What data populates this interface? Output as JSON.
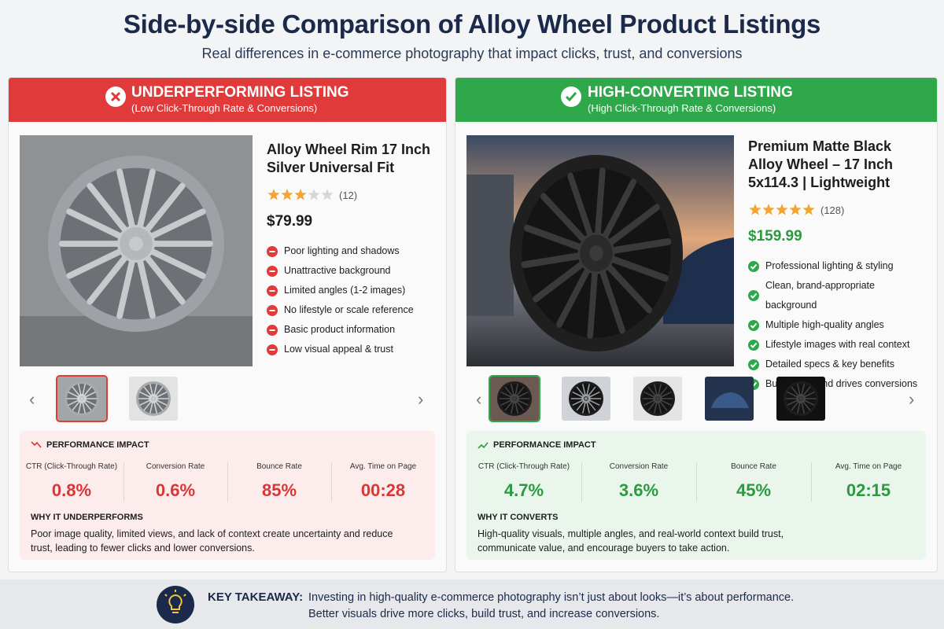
{
  "header": {
    "title": "Side-by-side Comparison of Alloy Wheel Product Listings",
    "subtitle": "Real differences in e-commerce photography that impact clicks, trust, and conversions"
  },
  "left": {
    "heading": "UNDERPERFORMING LISTING",
    "subheading": "(Low Click-Through Rate & Conversions)",
    "product_title": "Alloy Wheel Rim 17 Inch Silver Universal Fit",
    "rating": 3,
    "reviews": "(12)",
    "price": "$79.99",
    "points": [
      "Poor lighting and shadows",
      "Unattractive background",
      "Limited angles (1-2 images)",
      "No lifestyle or scale reference",
      "Basic product information",
      "Low visual appeal & trust"
    ],
    "performance_title": "PERFORMANCE IMPACT",
    "metrics": [
      {
        "label": "CTR (Click-Through Rate)",
        "value": "0.8%"
      },
      {
        "label": "Conversion Rate",
        "value": "0.6%"
      },
      {
        "label": "Bounce Rate",
        "value": "85%"
      },
      {
        "label": "Avg. Time on Page",
        "value": "00:28"
      }
    ],
    "why_title": "WHY IT UNDERPERFORMS",
    "why_text": "Poor image quality, limited views, and lack of context create uncertainty and reduce trust, leading to fewer clicks and lower conversions."
  },
  "right": {
    "heading": "HIGH-CONVERTING LISTING",
    "subheading": "(High Click-Through Rate & Conversions)",
    "product_title": "Premium Matte Black Alloy Wheel – 17 Inch 5x114.3 | Lightweight",
    "rating": 5,
    "reviews": "(128)",
    "price": "$159.99",
    "points": [
      "Professional lighting & styling",
      "Clean, brand-appropriate background",
      "Multiple high-quality angles",
      "Lifestyle images with real context",
      "Detailed specs & key benefits",
      "Builds trust and drives conversions"
    ],
    "performance_title": "PERFORMANCE IMPACT",
    "metrics": [
      {
        "label": "CTR (Click-Through Rate)",
        "value": "4.7%"
      },
      {
        "label": "Conversion Rate",
        "value": "3.6%"
      },
      {
        "label": "Bounce Rate",
        "value": "45%"
      },
      {
        "label": "Avg. Time on Page",
        "value": "02:15"
      }
    ],
    "why_title": "WHY IT CONVERTS",
    "why_text": "High-quality visuals, multiple angles, and real-world context build trust, communicate value, and encourage buyers to take action."
  },
  "takeaway": {
    "label": "KEY TAKEAWAY:",
    "text": "Investing in high-quality e-commerce photography isn’t just about looks—it’s about performance. Better visuals drive more clicks, build trust, and increase conversions."
  }
}
